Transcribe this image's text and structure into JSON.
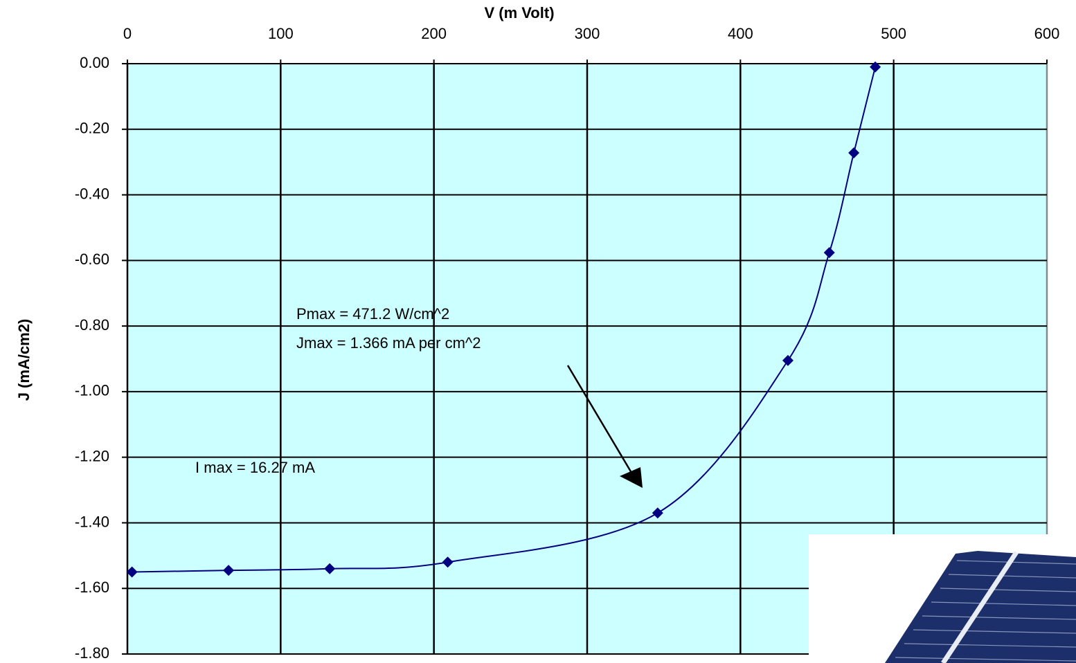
{
  "chart_data": {
    "type": "line",
    "x_label": "V (m Volt)",
    "y_label": "J (mA/cm2)",
    "x": [
      3,
      66,
      132,
      209,
      346,
      431,
      458,
      474,
      488
    ],
    "series": [
      {
        "color": "#000080",
        "values": [
          -1.55,
          -1.545,
          -1.54,
          -1.52,
          -1.37,
          -0.905,
          -0.576,
          -0.272,
          -0.01
        ]
      }
    ],
    "xlim": [
      0,
      600
    ],
    "xticks": [
      0,
      100,
      200,
      300,
      400,
      500,
      600
    ],
    "ylim": [
      -1.8,
      0
    ],
    "yticks": [
      {
        "value": 0,
        "label": "0.00"
      },
      {
        "value": -0.2,
        "label": "-0.20"
      },
      {
        "value": -0.4,
        "label": "-0.40"
      },
      {
        "value": -0.6,
        "label": "-0.60"
      },
      {
        "value": -0.8,
        "label": "-0.80"
      },
      {
        "value": -1,
        "label": "-1.00"
      },
      {
        "value": -1.2,
        "label": "-1.20"
      },
      {
        "value": -1.4,
        "label": "-1.40"
      },
      {
        "value": -1.6,
        "label": "-1.60"
      },
      {
        "value": -1.8,
        "label": "-1.80"
      }
    ],
    "grid": true,
    "plot_background": "#ccffff",
    "annotations": [
      "Pmax = 471.2  W/cm^2",
      "Jmax = 1.366 mA per cm^2",
      "I max = 16.27 mA"
    ]
  }
}
